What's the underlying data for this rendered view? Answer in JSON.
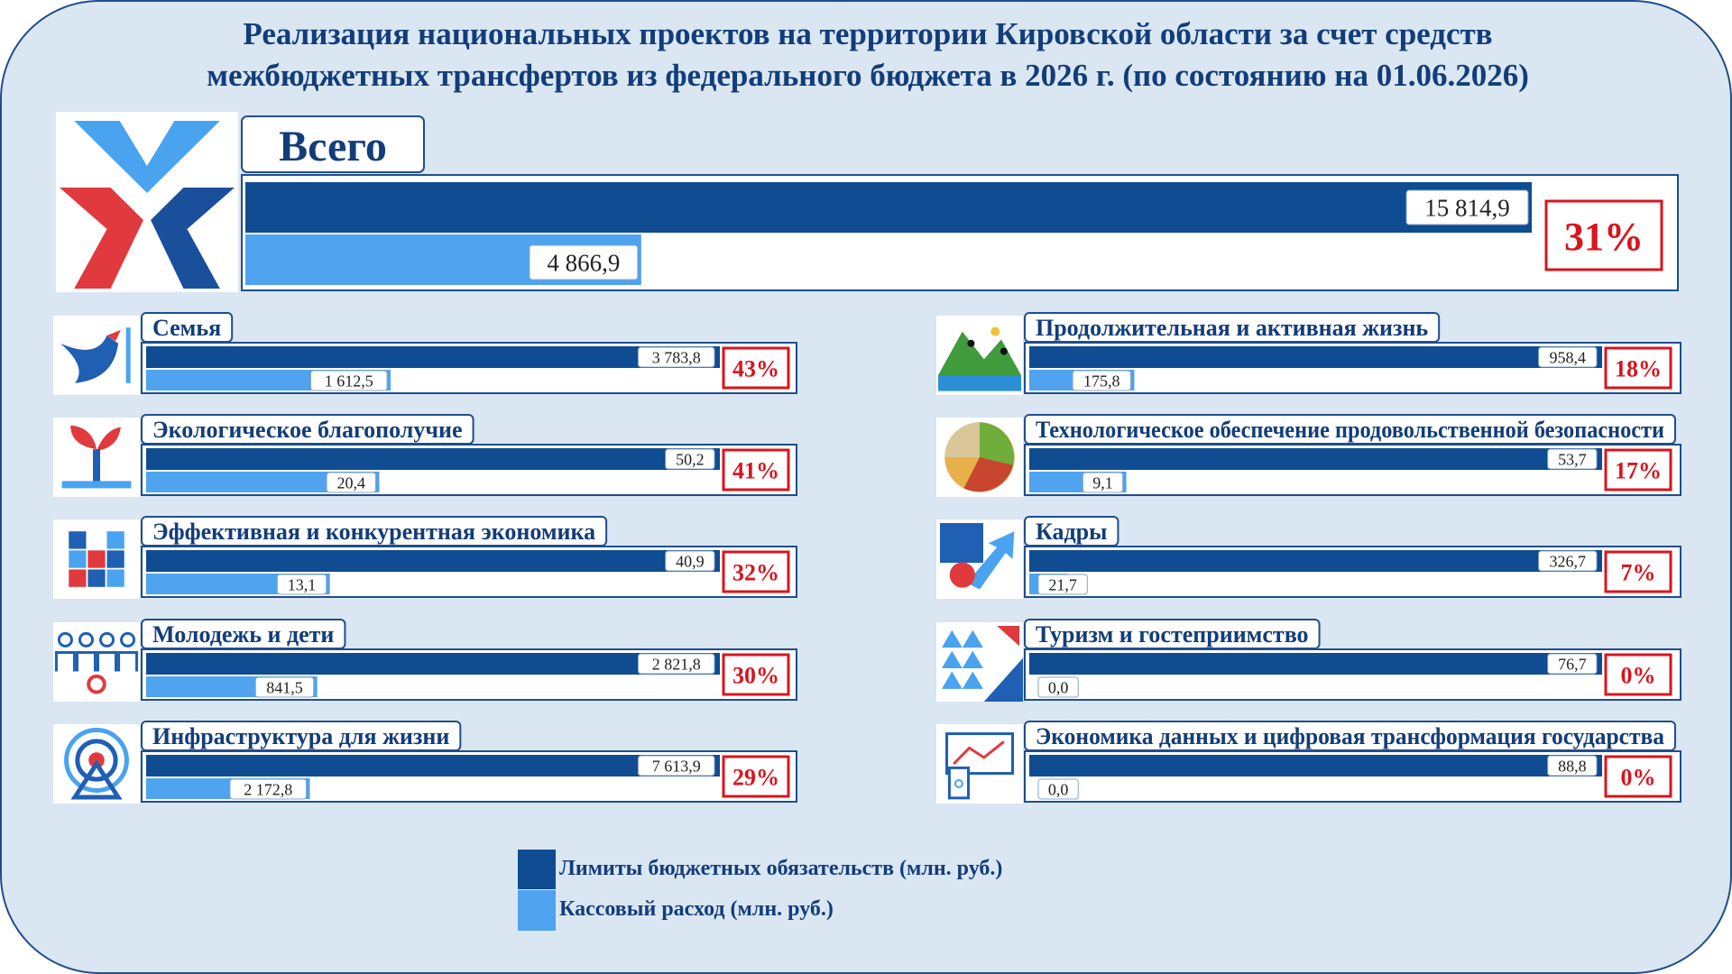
{
  "title_line1": "Реализация национальных проектов на территории Кировской области за счет средств",
  "title_line2": "межбюджетных трансфертов из федерального бюджета в 2026 г. (по состоянию на 01.06.2026)",
  "colors": {
    "limit": "#0f4c92",
    "cash": "#4fa3ef",
    "percent": "#d9141d",
    "frame": "#1f4e8c",
    "background": "#dae6f2"
  },
  "legend": [
    {
      "label": "Лимиты бюджетных обязательств (млн. руб.)",
      "color": "#0f4c92"
    },
    {
      "label": "Кассовый расход (млн. руб.)",
      "color": "#4fa3ef"
    }
  ],
  "chart_data": {
    "type": "bar",
    "orientation": "horizontal",
    "series_names": [
      "Лимиты бюджетных обязательств (млн. руб.)",
      "Кассовый расход (млн. руб.)"
    ],
    "total": {
      "name": "Всего",
      "limit": 15814.9,
      "limit_label": "15 814,9",
      "cash": 4866.9,
      "cash_label": "4 866,9",
      "percent": "31%",
      "icon": "national-projects-logo-icon"
    },
    "projects": [
      {
        "name": "Семья",
        "limit": 3783.8,
        "limit_label": "3 783,8",
        "cash": 1612.5,
        "cash_label": "1 612,5",
        "percent": "43%",
        "icon": "dove-icon"
      },
      {
        "name": "Экологическое благополучие",
        "limit": 50.2,
        "limit_label": "50,2",
        "cash": 20.4,
        "cash_label": "20,4",
        "percent": "41%",
        "icon": "sprout-icon"
      },
      {
        "name": "Эффективная и конкурентная экономика",
        "limit": 40.9,
        "limit_label": "40,9",
        "cash": 13.1,
        "cash_label": "13,1",
        "percent": "32%",
        "icon": "pixel-squares-icon"
      },
      {
        "name": "Молодежь и дети",
        "limit": 2821.8,
        "limit_label": "2 821,8",
        "cash": 841.5,
        "cash_label": "841,5",
        "percent": "30%",
        "icon": "people-group-icon"
      },
      {
        "name": "Инфраструктура для жизни",
        "limit": 7613.9,
        "limit_label": "7 613,9",
        "cash": 2172.8,
        "cash_label": "2 172,8",
        "percent": "29%",
        "icon": "signal-tower-icon"
      },
      {
        "name": "Продолжительная и активная жизнь",
        "limit": 958.4,
        "limit_label": "958,4",
        "cash": 175.8,
        "cash_label": "175,8",
        "percent": "18%",
        "icon": "sports-icon"
      },
      {
        "name": "Технологическое обеспечение продовольственной безопасности",
        "limit": 53.7,
        "limit_label": "53,7",
        "cash": 9.1,
        "cash_label": "9,1",
        "percent": "17%",
        "icon": "food-plate-icon"
      },
      {
        "name": "Кадры",
        "limit": 326.7,
        "limit_label": "326,7",
        "cash": 21.7,
        "cash_label": "21,7",
        "percent": "7%",
        "icon": "career-arrow-icon"
      },
      {
        "name": "Туризм и гостеприимство",
        "limit": 76.7,
        "limit_label": "76,7",
        "cash": 0.0,
        "cash_label": "0,0",
        "percent": "0%",
        "icon": "road-trees-icon"
      },
      {
        "name": "Экономика данных и цифровая трансформация государства",
        "limit": 88.8,
        "limit_label": "88,8",
        "cash": 0.0,
        "cash_label": "0,0",
        "percent": "0%",
        "icon": "digital-monitor-icon"
      }
    ]
  }
}
